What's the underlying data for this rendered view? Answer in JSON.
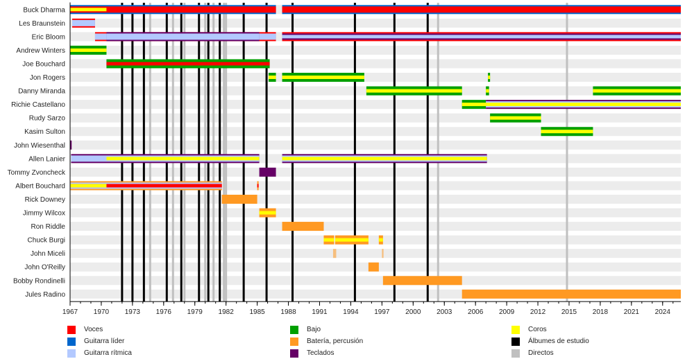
{
  "chart_data": {
    "type": "timeline",
    "title": "",
    "x_range": [
      1967,
      2025.75
    ],
    "x_ticks": [
      1967,
      1970,
      1973,
      1976,
      1979,
      1982,
      1985,
      1988,
      1991,
      1994,
      1997,
      2000,
      2003,
      2006,
      2009,
      2012,
      2015,
      2018,
      2021,
      2024
    ],
    "minor_tick_step": 1,
    "colors": {
      "vocals": "#ff0000",
      "lead_guitar": "#0066cc",
      "rhythm_guitar": "#b3c9ff",
      "bass": "#00a000",
      "drums": "#ff9922",
      "keyboards": "#660066",
      "backing_vocals": "#ffff00",
      "studio_album": "#000000",
      "live_album": "#c0c0c0",
      "row_band": "#ececec"
    },
    "legend": [
      {
        "key": "vocals",
        "label": "Voces"
      },
      {
        "key": "lead_guitar",
        "label": "Guitarra líder"
      },
      {
        "key": "rhythm_guitar",
        "label": "Guitarra rítmica"
      },
      {
        "key": "bass",
        "label": "Bajo"
      },
      {
        "key": "drums",
        "label": "Batería, percusión"
      },
      {
        "key": "keyboards",
        "label": "Teclados"
      },
      {
        "key": "backing_vocals",
        "label": "Coros"
      },
      {
        "key": "studio_album",
        "label": "Álbumes de estudio"
      },
      {
        "key": "live_album",
        "label": "Directos"
      }
    ],
    "studio_albums": [
      1972.0,
      1973.0,
      1974.1,
      1976.3,
      1977.7,
      1979.4,
      1980.3,
      1981.4,
      1983.7,
      1985.9,
      1988.4,
      1994.4,
      1998.2,
      2001.4
    ],
    "live_albums": [
      1974.7,
      1976.9,
      1978.0,
      1980.0,
      1980.8,
      1981.8,
      1982.0,
      2002.4,
      2014.8
    ],
    "members": [
      {
        "name": "Buck Dharma",
        "periods": [
          {
            "start": 1967.0,
            "end": 1986.8,
            "main": "lead_guitar",
            "inner": "vocals"
          },
          {
            "start": 1967.0,
            "end": 1970.5,
            "stripe": "backing_vocals"
          },
          {
            "start": 1987.4,
            "end": 2025.75,
            "main": "lead_guitar",
            "inner": "vocals"
          }
        ]
      },
      {
        "name": "Les Braunstein",
        "periods": [
          {
            "start": 1967.2,
            "end": 1969.4,
            "main": "vocals",
            "inner": "rhythm_guitar"
          }
        ]
      },
      {
        "name": "Eric Bloom",
        "periods": [
          {
            "start": 1969.4,
            "end": 1986.8,
            "main": "vocals",
            "inner": "rhythm_guitar"
          },
          {
            "start": 1970.5,
            "end": 1985.2,
            "main": "keyboards",
            "inner": "rhythm_guitar"
          },
          {
            "start": 1987.4,
            "end": 2025.75,
            "main": "vocals",
            "inner": "rhythm_guitar",
            "inner2": "keyboards"
          }
        ]
      },
      {
        "name": "Andrew Winters",
        "periods": [
          {
            "start": 1967.0,
            "end": 1970.5,
            "main": "bass",
            "stripe": "backing_vocals"
          }
        ]
      },
      {
        "name": "Joe Bouchard",
        "periods": [
          {
            "start": 1970.5,
            "end": 1986.2,
            "main": "bass",
            "stripe": "vocals"
          }
        ]
      },
      {
        "name": "Jon Rogers",
        "periods": [
          {
            "start": 1986.1,
            "end": 1986.8,
            "main": "bass",
            "stripe": "backing_vocals"
          },
          {
            "start": 1987.4,
            "end": 1995.3,
            "main": "bass",
            "stripe": "backing_vocals"
          },
          {
            "start": 2007.2,
            "end": 2007.4,
            "main": "bass",
            "stripe": "backing_vocals"
          }
        ]
      },
      {
        "name": "Danny Miranda",
        "periods": [
          {
            "start": 1995.5,
            "end": 2004.7,
            "main": "bass",
            "stripe": "backing_vocals"
          },
          {
            "start": 2007.0,
            "end": 2007.3,
            "main": "bass",
            "stripe": "backing_vocals"
          },
          {
            "start": 2017.3,
            "end": 2025.75,
            "main": "bass",
            "stripe": "backing_vocals"
          }
        ]
      },
      {
        "name": "Richie Castellano",
        "periods": [
          {
            "start": 2004.7,
            "end": 2007.0,
            "main": "bass",
            "stripe": "backing_vocals"
          },
          {
            "start": 2007.0,
            "end": 2025.75,
            "main": "keyboards",
            "inner": "rhythm_guitar",
            "stripe": "backing_vocals"
          }
        ]
      },
      {
        "name": "Rudy Sarzo",
        "periods": [
          {
            "start": 2007.4,
            "end": 2012.3,
            "main": "bass",
            "stripe": "backing_vocals"
          }
        ]
      },
      {
        "name": "Kasim Sulton",
        "periods": [
          {
            "start": 2012.3,
            "end": 2017.3,
            "main": "bass",
            "stripe": "backing_vocals"
          }
        ]
      },
      {
        "name": "John Wiesenthal",
        "periods": [
          {
            "start": 1967.0,
            "end": 1967.15,
            "main": "keyboards"
          }
        ]
      },
      {
        "name": "Allen Lanier",
        "periods": [
          {
            "start": 1967.1,
            "end": 1985.2,
            "main": "keyboards",
            "inner": "rhythm_guitar"
          },
          {
            "start": 1970.5,
            "end": 1985.2,
            "stripe": "backing_vocals"
          },
          {
            "start": 1987.4,
            "end": 2007.1,
            "main": "keyboards",
            "inner": "rhythm_guitar",
            "stripe": "backing_vocals"
          }
        ]
      },
      {
        "name": "Tommy Zvoncheck",
        "periods": [
          {
            "start": 1985.2,
            "end": 1986.8,
            "main": "keyboards"
          }
        ]
      },
      {
        "name": "Albert Bouchard",
        "periods": [
          {
            "start": 1967.0,
            "end": 1981.6,
            "main": "drums",
            "inner": "rhythm_guitar",
            "stripe": "vocals"
          },
          {
            "start": 1967.0,
            "end": 1970.5,
            "stripe": "backing_vocals"
          },
          {
            "start": 1985.0,
            "end": 1985.1,
            "main": "drums",
            "stripe": "vocals"
          }
        ]
      },
      {
        "name": "Rick Downey",
        "periods": [
          {
            "start": 1981.6,
            "end": 1985.0,
            "main": "drums"
          }
        ]
      },
      {
        "name": "Jimmy Wilcox",
        "periods": [
          {
            "start": 1985.2,
            "end": 1986.8,
            "main": "drums",
            "stripe": "backing_vocals"
          }
        ]
      },
      {
        "name": "Ron Riddle",
        "periods": [
          {
            "start": 1987.4,
            "end": 1991.4,
            "main": "drums"
          }
        ]
      },
      {
        "name": "Chuck Burgi",
        "periods": [
          {
            "start": 1991.4,
            "end": 1992.4,
            "main": "drums",
            "stripe": "backing_vocals"
          },
          {
            "start": 1992.5,
            "end": 1995.7,
            "main": "drums",
            "stripe": "backing_vocals"
          },
          {
            "start": 1996.7,
            "end": 1997.1,
            "main": "drums",
            "stripe": "backing_vocals"
          }
        ]
      },
      {
        "name": "John Miceli",
        "periods": [
          {
            "start": 1992.3,
            "end": 1992.6,
            "main": "drums",
            "faded": true
          },
          {
            "start": 1997.0,
            "end": 1997.15,
            "main": "drums",
            "faded": true
          }
        ]
      },
      {
        "name": "John O'Reilly",
        "periods": [
          {
            "start": 1995.7,
            "end": 1996.7,
            "main": "drums"
          }
        ]
      },
      {
        "name": "Bobby Rondinelli",
        "periods": [
          {
            "start": 1997.1,
            "end": 2004.7,
            "main": "drums"
          }
        ]
      },
      {
        "name": "Jules Radino",
        "periods": [
          {
            "start": 2004.7,
            "end": 2025.75,
            "main": "drums"
          }
        ]
      }
    ]
  }
}
